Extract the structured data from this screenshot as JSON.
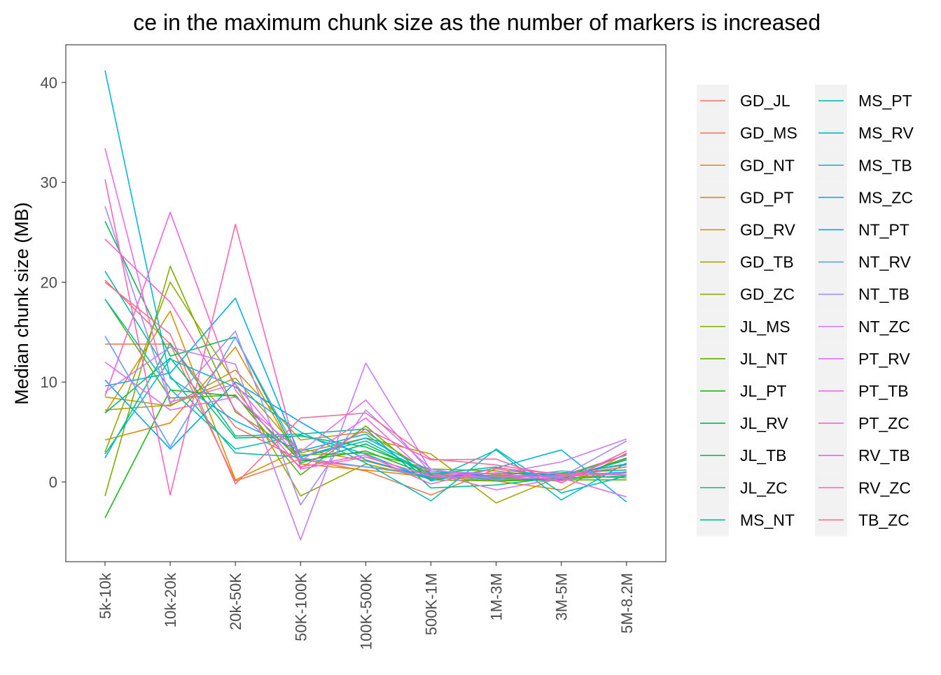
{
  "chart_data": {
    "type": "line",
    "title": "...ce in the maximum chunk size as the number of markers is increased",
    "title_visible": "ce in the maximum chunk size as the number of markers is increased",
    "xlabel": "",
    "ylabel": "Median chunk size (MB)",
    "categories": [
      "5k-10k",
      "10k-20k",
      "20k-50K",
      "50K-100K",
      "100K-500K",
      "500K-1M",
      "1M-3M",
      "3M-5M",
      "5M-8.2M"
    ],
    "yticks": [
      0,
      10,
      20,
      30,
      40
    ],
    "ylim": [
      -8,
      44.5
    ],
    "grid": false,
    "legend_placement": "right, two columns",
    "series": [
      {
        "name": "GD_JL",
        "color": "#F8766D",
        "values": [
          20.2,
          13.8,
          5.5,
          2.2,
          1.5,
          0.8,
          0.5,
          0.2,
          2.3
        ]
      },
      {
        "name": "GD_MS",
        "color": "#F07E4D",
        "values": [
          13.8,
          13.8,
          0.1,
          2.3,
          1.1,
          -1.3,
          1.3,
          0.4,
          2.2
        ]
      },
      {
        "name": "GD_NT",
        "color": "#E38900",
        "values": [
          4.2,
          5.9,
          13.5,
          1.8,
          1.2,
          0.5,
          0.1,
          -0.8,
          2.9
        ]
      },
      {
        "name": "GD_PT",
        "color": "#D49200",
        "values": [
          6.9,
          17.1,
          0.2,
          3.3,
          2.1,
          0.4,
          0.7,
          0.5,
          1.5
        ]
      },
      {
        "name": "GD_RV",
        "color": "#C29A00",
        "values": [
          8.5,
          7.6,
          11.2,
          4.2,
          5.0,
          0.9,
          0.3,
          0.8,
          1.7
        ]
      },
      {
        "name": "GD_TB",
        "color": "#AEA200",
        "values": [
          7.2,
          7.7,
          10.4,
          2.9,
          4.4,
          2.8,
          -2.1,
          0.6,
          2.7
        ]
      },
      {
        "name": "GD_ZC",
        "color": "#96A900",
        "values": [
          3.0,
          20.0,
          9.8,
          -1.4,
          1.8,
          0.3,
          0.6,
          0.7,
          0.4
        ]
      },
      {
        "name": "JL_MS",
        "color": "#7CAE00",
        "values": [
          -1.4,
          21.6,
          7.0,
          2.7,
          2.9,
          1.3,
          1.1,
          0.3,
          0.9
        ]
      },
      {
        "name": "JL_NT",
        "color": "#5BB300",
        "values": [
          18.3,
          8.4,
          8.7,
          0.7,
          5.6,
          0.2,
          0.1,
          0.2,
          0.2
        ]
      },
      {
        "name": "JL_PT",
        "color": "#1BB816",
        "values": [
          -3.6,
          9.2,
          8.6,
          2.1,
          3.1,
          0.6,
          0.4,
          0.1,
          2.4
        ]
      },
      {
        "name": "JL_RV",
        "color": "#00BB4E",
        "values": [
          26.1,
          12.6,
          14.5,
          1.9,
          3.8,
          0.7,
          0.2,
          0.3,
          0.6
        ]
      },
      {
        "name": "JL_TB",
        "color": "#00BE6C",
        "values": [
          6.9,
          12.4,
          4.4,
          4.6,
          3.5,
          0.9,
          0.8,
          0.9,
          1.2
        ]
      },
      {
        "name": "JL_ZC",
        "color": "#00C087",
        "values": [
          2.4,
          13.9,
          4.6,
          4.8,
          5.3,
          -0.6,
          -0.3,
          0.5,
          2.7
        ]
      },
      {
        "name": "MS_NT",
        "color": "#00C19F",
        "values": [
          21.1,
          10.6,
          2.9,
          2.5,
          4.1,
          0.8,
          1.5,
          0.3,
          2.2
        ]
      },
      {
        "name": "MS_PT",
        "color": "#00BFB5",
        "values": [
          18.3,
          9.3,
          3.3,
          4.7,
          2.8,
          0.2,
          3.2,
          -1.8,
          1.9
        ]
      },
      {
        "name": "MS_RV",
        "color": "#00BCC9",
        "values": [
          2.8,
          12.3,
          9.5,
          5.0,
          1.9,
          -1.9,
          3.3,
          -1.1,
          0.6
        ]
      },
      {
        "name": "MS_TB",
        "color": "#00B6DB",
        "values": [
          41.2,
          10.4,
          6.1,
          3.1,
          4.8,
          0.1,
          1.4,
          3.2,
          -2.0
        ]
      },
      {
        "name": "MS_ZC",
        "color": "#00AFEB",
        "values": [
          9.6,
          10.9,
          18.4,
          2.5,
          4.4,
          1.1,
          0.5,
          0.6,
          1.0
        ]
      },
      {
        "name": "NT_PT",
        "color": "#00A5F8",
        "values": [
          10.2,
          3.3,
          10.0,
          6.0,
          2.2,
          0.4,
          0.9,
          0.7,
          1.8
        ]
      },
      {
        "name": "NT_RV",
        "color": "#619CFF",
        "values": [
          14.6,
          3.5,
          14.5,
          2.4,
          1.5,
          0.6,
          0.3,
          1.1,
          0.7
        ]
      },
      {
        "name": "NT_TB",
        "color": "#A58AFF",
        "values": [
          27.6,
          7.8,
          15.1,
          -2.3,
          7.2,
          1.3,
          0.2,
          0.5,
          4.1
        ]
      },
      {
        "name": "NT_ZC",
        "color": "#C77CFF",
        "values": [
          9.0,
          13.5,
          11.8,
          -5.8,
          11.9,
          1.1,
          0.8,
          2.0,
          4.3
        ]
      },
      {
        "name": "PT_RV",
        "color": "#DC71FA",
        "values": [
          12.0,
          7.2,
          8.5,
          3.0,
          8.2,
          0.9,
          -0.8,
          0.4,
          -1.5
        ]
      },
      {
        "name": "PT_TB",
        "color": "#EB6BE8",
        "values": [
          33.4,
          8.0,
          9.8,
          2.1,
          6.4,
          0.5,
          0.5,
          0.6,
          0.9
        ]
      },
      {
        "name": "PT_ZC",
        "color": "#F566D2",
        "values": [
          24.3,
          18.0,
          7.2,
          1.5,
          2.7,
          -0.2,
          1.4,
          0.8,
          0.7
        ]
      },
      {
        "name": "RV_TB",
        "color": "#FB61D7",
        "values": [
          8.6,
          27.0,
          9.2,
          1.3,
          2.5,
          0.6,
          0.9,
          0.1,
          2.8
        ]
      },
      {
        "name": "RV_ZC",
        "color": "#FF63B6",
        "values": [
          30.3,
          -1.3,
          25.8,
          1.4,
          5.3,
          2.2,
          2.3,
          -0.1,
          3.1
        ]
      },
      {
        "name": "TB_ZC",
        "color": "#FF6C91",
        "values": [
          20.0,
          14.8,
          -0.2,
          6.4,
          6.9,
          2.3,
          1.7,
          0.7,
          1.5
        ]
      }
    ]
  }
}
